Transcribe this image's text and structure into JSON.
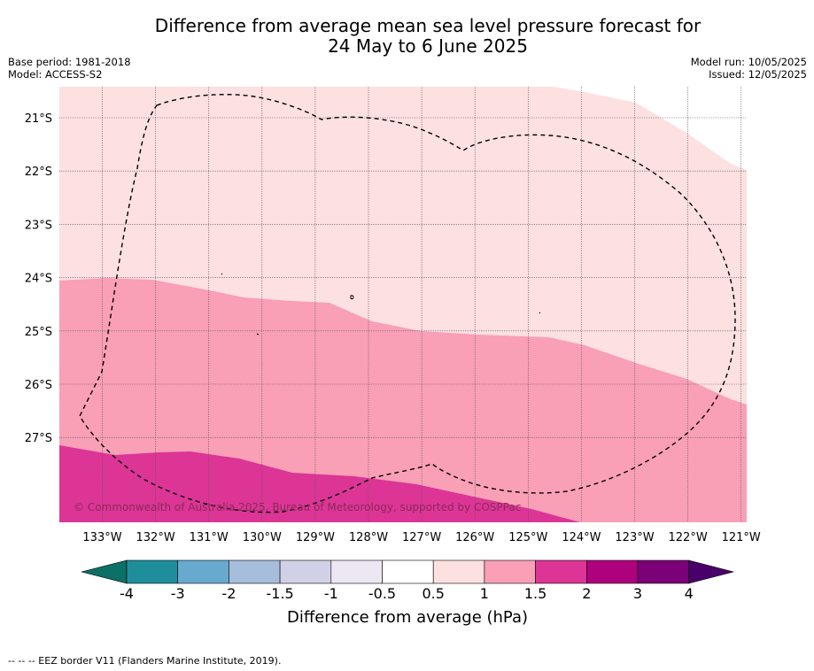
{
  "title": {
    "line1": "Difference from average mean sea level pressure forecast for",
    "line2": "24 May to 6 June 2025"
  },
  "meta": {
    "base_period": "Base period: 1981-2018",
    "model": "Model: ACCESS-S2",
    "model_run": "Model run: 10/05/2025",
    "issued": "Issued: 12/05/2025"
  },
  "map": {
    "lat_labels": [
      "21°S",
      "22°S",
      "23°S",
      "24°S",
      "25°S",
      "26°S",
      "27°S"
    ],
    "lon_labels": [
      "133°W",
      "132°W",
      "131°W",
      "130°W",
      "129°W",
      "128°W",
      "127°W",
      "126°W",
      "125°W",
      "124°W",
      "123°W",
      "122°W",
      "121°W"
    ],
    "copyright": "© Commonwealth of Australia 2025, Bureau of Meteorology, supported by COSPPac",
    "colors": {
      "0.5_to_1": "#fde0e0",
      "1_to_1.5": "#f99fb6",
      "1.5_to_2": "#dc3596",
      "grid": "#555555",
      "eez_border": "#000000"
    }
  },
  "colorbar": {
    "ticks": [
      "-4",
      "-3",
      "-2",
      "-1.5",
      "-1",
      "-0.5",
      "0.5",
      "1",
      "1.5",
      "2",
      "3",
      "4"
    ],
    "colors": [
      "#0b7065",
      "#1e8f9a",
      "#67a9cf",
      "#a6bddb",
      "#d0d1e6",
      "#ece7f2",
      "#ffffff",
      "#fde0e0",
      "#f99fb6",
      "#dc3596",
      "#ae017e",
      "#7a0177",
      "#49006a"
    ],
    "title": "Difference from average (hPa)"
  },
  "footer": {
    "eez_note": "--  --  -- EEZ border V11 (Flanders Marine Institute, 2019)."
  }
}
